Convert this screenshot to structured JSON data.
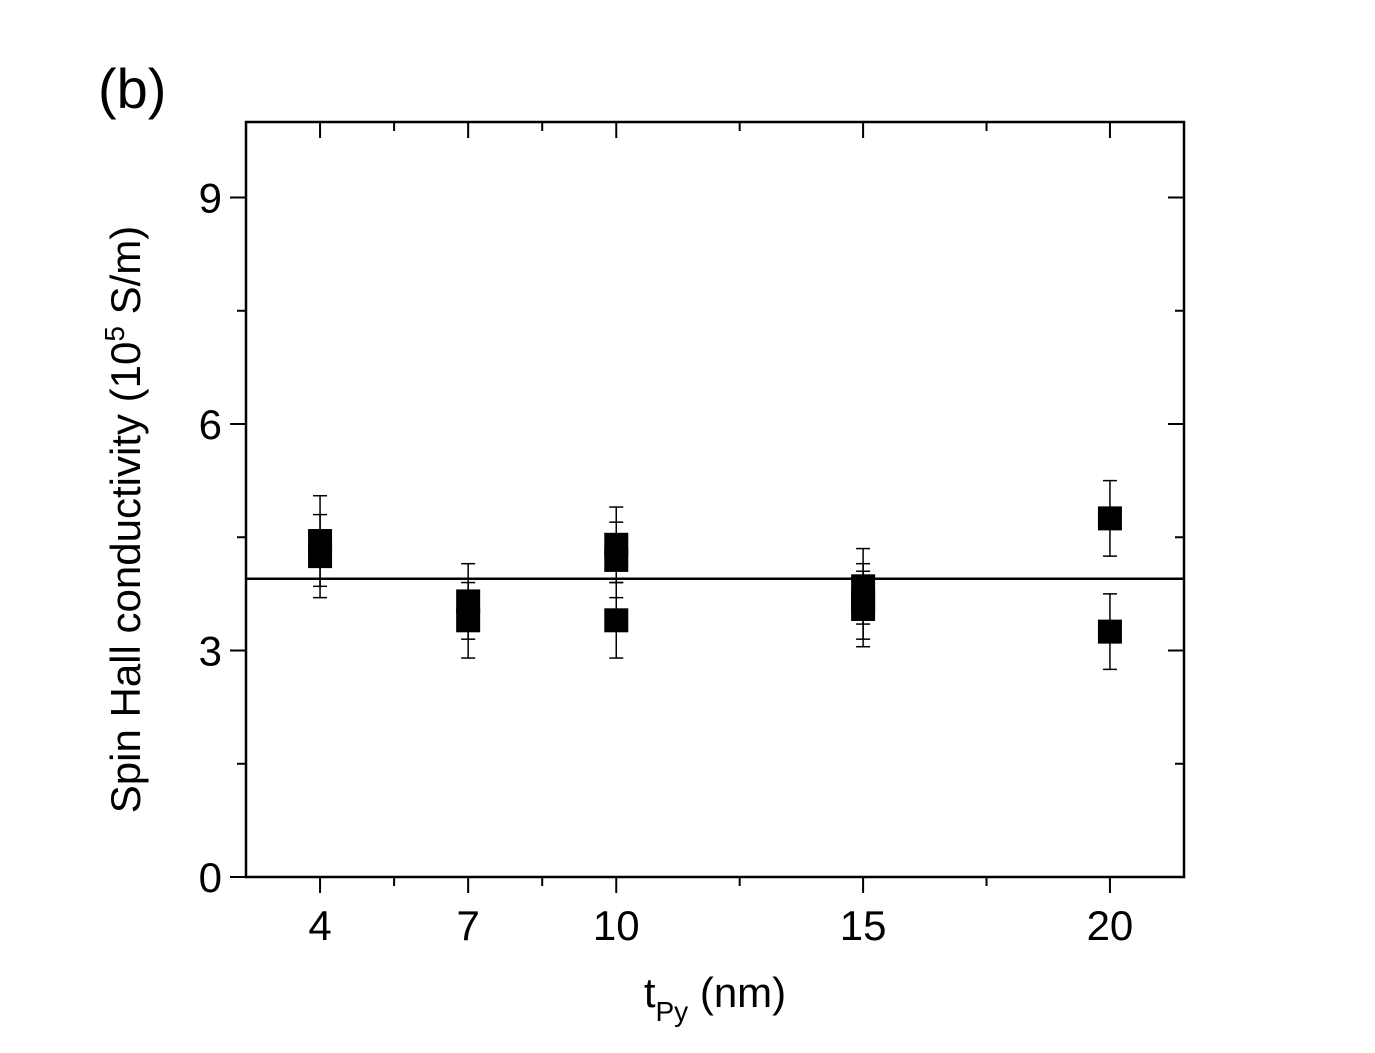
{
  "panel_label": "(b)",
  "chart_data": {
    "type": "scatter",
    "title": "",
    "xlabel": {
      "main": "t",
      "sub": "Py",
      "unit": " (nm)"
    },
    "ylabel": {
      "prefix": "Spin Hall conductivity (10",
      "sup": "5",
      "suffix": " S/m)"
    },
    "x_ticks": [
      4,
      7,
      10,
      15,
      20
    ],
    "x_tick_labels": [
      "4",
      "7",
      "10",
      "15",
      "20"
    ],
    "y_ticks": [
      0,
      3,
      6,
      9
    ],
    "y_tick_labels": [
      "0",
      "3",
      "6",
      "9"
    ],
    "xlim": [
      2.5,
      21.5
    ],
    "ylim": [
      0,
      10
    ],
    "grid": false,
    "reference_line": {
      "y": 3.95
    },
    "series": [
      {
        "marker": "filled-square",
        "color": "#000000",
        "points": [
          {
            "x": 4,
            "y": 4.45,
            "err": 0.6
          },
          {
            "x": 4,
            "y": 4.25,
            "err": 0.55
          },
          {
            "x": 7,
            "y": 3.65,
            "err": 0.5
          },
          {
            "x": 7,
            "y": 3.4,
            "err": 0.5
          },
          {
            "x": 10,
            "y": 4.4,
            "err": 0.5
          },
          {
            "x": 10,
            "y": 4.2,
            "err": 0.5
          },
          {
            "x": 10,
            "y": 3.4,
            "err": 0.5
          },
          {
            "x": 15,
            "y": 3.85,
            "err": 0.5
          },
          {
            "x": 15,
            "y": 3.65,
            "err": 0.5
          },
          {
            "x": 15,
            "y": 3.55,
            "err": 0.5
          },
          {
            "x": 20,
            "y": 4.75,
            "err": 0.5
          },
          {
            "x": 20,
            "y": 3.25,
            "err": 0.5
          }
        ]
      }
    ]
  }
}
